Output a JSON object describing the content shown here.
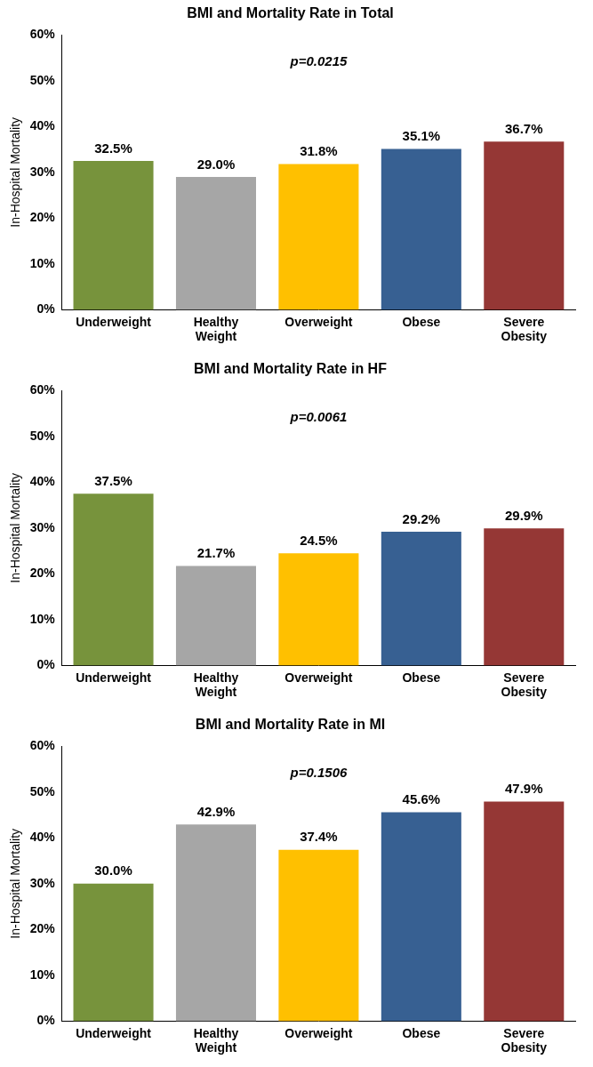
{
  "chart_data": [
    {
      "type": "bar",
      "title": "BMI and Mortality Rate in Total",
      "annotation": "p=0.0215",
      "y_label": "In-Hospital Mortality",
      "categories": [
        "Underweight",
        "Healthy Weight",
        "Overweight",
        "Obese",
        "Severe Obesity"
      ],
      "values": [
        32.5,
        29.0,
        31.8,
        35.1,
        36.7
      ],
      "value_labels": [
        "32.5%",
        "29.0%",
        "31.8%",
        "35.1%",
        "36.7%"
      ],
      "colors": [
        "#77933c",
        "#a6a6a6",
        "#ffc000",
        "#376092",
        "#953735"
      ],
      "ylim": [
        0,
        60
      ],
      "yticks": [
        {
          "value": 0,
          "label": "0%"
        },
        {
          "value": 10,
          "label": "10%"
        },
        {
          "value": 20,
          "label": "20%"
        },
        {
          "value": 30,
          "label": "30%"
        },
        {
          "value": 40,
          "label": "40%"
        },
        {
          "value": 50,
          "label": "50%"
        },
        {
          "value": 60,
          "label": "60%"
        }
      ],
      "grid": false,
      "data_labels": true
    },
    {
      "type": "bar",
      "title": "BMI and Mortality Rate in HF",
      "annotation": "p=0.0061",
      "y_label": "In-Hospital Mortality",
      "categories": [
        "Underweight",
        "Healthy Weight",
        "Overweight",
        "Obese",
        "Severe Obesity"
      ],
      "values": [
        37.5,
        21.7,
        24.5,
        29.2,
        29.9
      ],
      "value_labels": [
        "37.5%",
        "21.7%",
        "24.5%",
        "29.2%",
        "29.9%"
      ],
      "colors": [
        "#77933c",
        "#a6a6a6",
        "#ffc000",
        "#376092",
        "#953735"
      ],
      "ylim": [
        0,
        60
      ],
      "yticks": [
        {
          "value": 0,
          "label": "0%"
        },
        {
          "value": 10,
          "label": "10%"
        },
        {
          "value": 20,
          "label": "20%"
        },
        {
          "value": 30,
          "label": "30%"
        },
        {
          "value": 40,
          "label": "40%"
        },
        {
          "value": 50,
          "label": "50%"
        },
        {
          "value": 60,
          "label": "60%"
        }
      ],
      "grid": false,
      "data_labels": true
    },
    {
      "type": "bar",
      "title": "BMI and Mortality Rate in MI",
      "annotation": "p=0.1506",
      "y_label": "In-Hospital Mortality",
      "categories": [
        "Underweight",
        "Healthy Weight",
        "Overweight",
        "Obese",
        "Severe Obesity"
      ],
      "values": [
        30.0,
        42.9,
        37.4,
        45.6,
        47.9
      ],
      "value_labels": [
        "30.0%",
        "42.9%",
        "37.4%",
        "45.6%",
        "47.9%"
      ],
      "colors": [
        "#77933c",
        "#a6a6a6",
        "#ffc000",
        "#376092",
        "#953735"
      ],
      "ylim": [
        0,
        60
      ],
      "yticks": [
        {
          "value": 0,
          "label": "0%"
        },
        {
          "value": 10,
          "label": "10%"
        },
        {
          "value": 20,
          "label": "20%"
        },
        {
          "value": 30,
          "label": "30%"
        },
        {
          "value": 40,
          "label": "40%"
        },
        {
          "value": 50,
          "label": "50%"
        },
        {
          "value": 60,
          "label": "60%"
        }
      ],
      "grid": false,
      "data_labels": true
    }
  ]
}
